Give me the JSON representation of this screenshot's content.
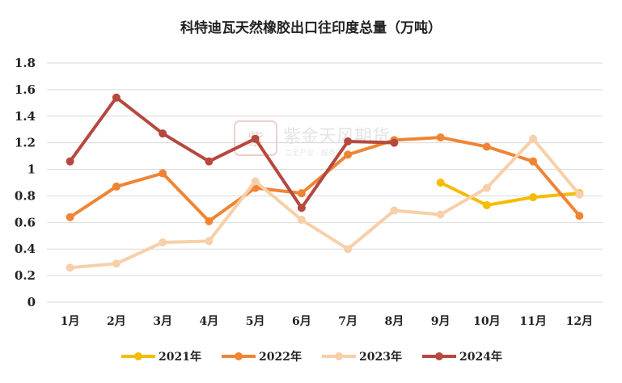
{
  "chart_data": {
    "type": "line",
    "title": "科特迪瓦天然橡胶出口往印度总量（万吨）",
    "xlabel": "",
    "ylabel": "",
    "categories": [
      "1月",
      "2月",
      "3月",
      "4月",
      "5月",
      "6月",
      "7月",
      "8月",
      "9月",
      "10月",
      "11月",
      "12月"
    ],
    "ylim": [
      0,
      1.8
    ],
    "yticks": [
      "0",
      "0.2",
      "0.4",
      "0.6",
      "0.8",
      "1",
      "1.2",
      "1.4",
      "1.6",
      "1.8"
    ],
    "grid": true,
    "legend_position": "bottom",
    "series": [
      {
        "name": "2021年",
        "color": "#f5bc00",
        "values": [
          null,
          null,
          null,
          null,
          null,
          null,
          null,
          null,
          0.9,
          0.73,
          0.79,
          0.82
        ]
      },
      {
        "name": "2022年",
        "color": "#ef8534",
        "values": [
          0.64,
          0.87,
          0.97,
          0.61,
          0.86,
          0.82,
          1.11,
          1.22,
          1.24,
          1.17,
          1.06,
          0.65
        ]
      },
      {
        "name": "2023年",
        "color": "#f7cfa9",
        "values": [
          0.26,
          0.29,
          0.45,
          0.46,
          0.91,
          0.62,
          0.4,
          0.69,
          0.66,
          0.86,
          1.23,
          0.81
        ]
      },
      {
        "name": "2024年",
        "color": "#b5483f",
        "values": [
          1.06,
          1.54,
          1.27,
          1.06,
          1.23,
          0.71,
          1.21,
          1.2,
          null,
          null,
          null,
          null
        ]
      }
    ]
  },
  "watermark": {
    "name": "紫金天风期货",
    "tagline": "立足产业 · 服务实体"
  }
}
